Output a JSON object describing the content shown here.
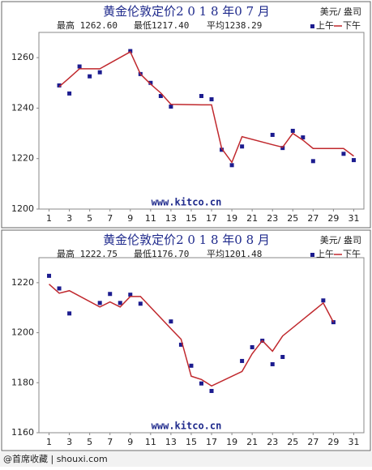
{
  "chart_data": [
    {
      "type": "line",
      "title": "黄金伦敦定价2 0 1 8 年0 7 月",
      "unit": "美元/ 盎司",
      "stats": [
        "最高 1262.60",
        "最低1217.40",
        "平均1238.29"
      ],
      "annotation": "www.kitco.cn",
      "x": [
        2,
        3,
        4,
        5,
        6,
        9,
        10,
        11,
        12,
        13,
        16,
        17,
        18,
        19,
        20,
        23,
        24,
        25,
        26,
        27,
        30,
        31
      ],
      "series": [
        {
          "name": "上午",
          "color": "#1c1c8f",
          "marker": "square",
          "values": [
            1249,
            1245.8,
            1256.5,
            1252.6,
            1254.2,
            1262.6,
            1253.5,
            1250,
            1244.8,
            1240.6,
            1244.8,
            1243.5,
            1223.5,
            1217.4,
            1224.8,
            1229.4,
            1224.2,
            1231,
            1228.4,
            1219,
            1221.9,
            1219.4
          ]
        },
        {
          "name": "下午",
          "color": "#c0282d",
          "marker": "line",
          "values": [
            1248.5,
            1252,
            1255.6,
            1255.6,
            1255.6,
            1262.3,
            1253.5,
            1249.5,
            1246,
            1241.5,
            1241.3,
            1241.3,
            1224,
            1218.5,
            1228.7,
            1225.5,
            1224.5,
            1230,
            1227.3,
            1224,
            1224,
            1221
          ]
        }
      ],
      "xlim": [
        0,
        32
      ],
      "xticks": [
        1,
        3,
        5,
        7,
        9,
        11,
        13,
        15,
        17,
        19,
        21,
        23,
        25,
        27,
        29,
        31
      ],
      "ylim": [
        1200,
        1270
      ],
      "yticks": [
        1200,
        1220,
        1240,
        1260
      ]
    },
    {
      "type": "line",
      "title": "黄金伦敦定价2 0 1 8 年0 8 月",
      "unit": "美元/ 盎司",
      "stats": [
        "最高 1222.75",
        "最低1176.70",
        "平均1201.48"
      ],
      "annotation": "www.kitco.cn",
      "x": [
        1,
        2,
        3,
        6,
        7,
        8,
        9,
        10,
        13,
        14,
        15,
        16,
        17,
        20,
        21,
        22,
        23,
        24,
        28,
        29
      ],
      "series": [
        {
          "name": "上午",
          "color": "#1c1c8f",
          "marker": "square",
          "values": [
            1222.75,
            1217.7,
            1207.7,
            1211.9,
            1215.5,
            1211.9,
            1215.2,
            1211.6,
            1204.5,
            1195.2,
            1186.8,
            1179.7,
            1176.7,
            1188.7,
            1194.2,
            1196.8,
            1187.4,
            1190.3,
            1212.9,
            1204.2
          ]
        },
        {
          "name": "下午",
          "color": "#c0282d",
          "marker": "line",
          "values": [
            1219.4,
            1215.8,
            1216.8,
            1210.3,
            1212.3,
            1210.3,
            1214.5,
            1214.5,
            1201.6,
            1197.4,
            1182.6,
            1181.3,
            1178.7,
            1184.5,
            1191.6,
            1196.8,
            1192.6,
            1198.7,
            1211.9,
            1204.2
          ]
        }
      ],
      "xlim": [
        0,
        32
      ],
      "xticks": [
        1,
        3,
        5,
        7,
        9,
        11,
        13,
        15,
        17,
        19,
        21,
        23,
        25,
        27,
        29,
        31
      ],
      "ylim": [
        1160,
        1230
      ],
      "yticks": [
        1160,
        1180,
        1200,
        1220
      ]
    }
  ],
  "watermark": "@首席收藏 | shouxi.com"
}
